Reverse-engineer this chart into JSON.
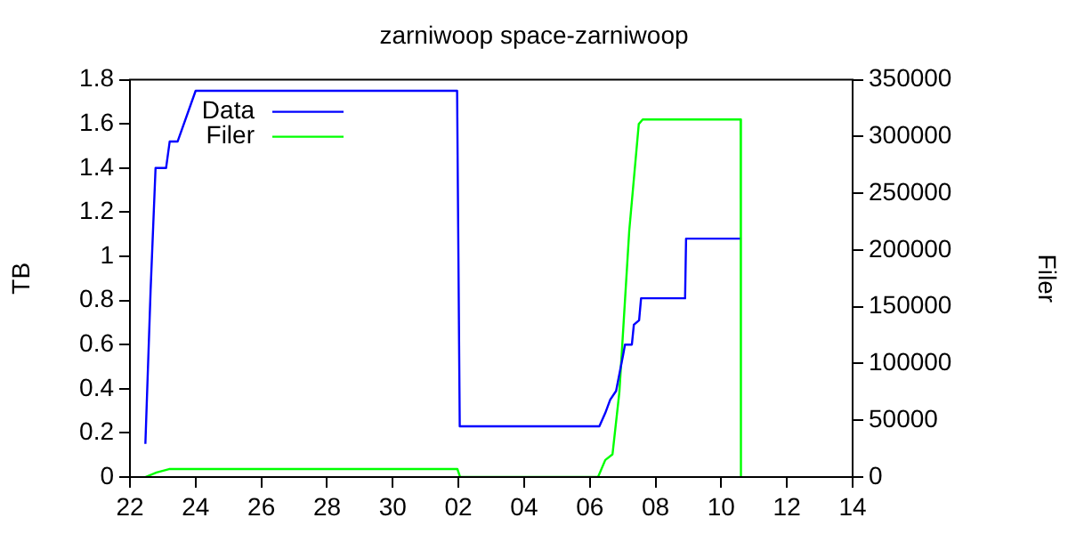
{
  "chart_data": {
    "type": "line",
    "title": "zarniwoop space-zarniwoop",
    "ylabel": "TB",
    "y2label": "Filer",
    "xlim": [
      "--06-22",
      "--07-14"
    ],
    "xticks": [
      {
        "value": "--06-22",
        "label": "22"
      },
      {
        "value": "--06-24",
        "label": "24"
      },
      {
        "value": "--06-26",
        "label": "26"
      },
      {
        "value": "--06-28",
        "label": "28"
      },
      {
        "value": "--06-30",
        "label": "30"
      },
      {
        "value": "--07-02",
        "label": "02"
      },
      {
        "value": "--07-04",
        "label": "04"
      },
      {
        "value": "--07-06",
        "label": "06"
      },
      {
        "value": "--07-08",
        "label": "08"
      },
      {
        "value": "--07-10",
        "label": "10"
      },
      {
        "value": "--07-12",
        "label": "12"
      },
      {
        "value": "--07-14",
        "label": "14"
      }
    ],
    "ylim": [
      0,
      1.8
    ],
    "yticks": [
      0,
      0.2,
      0.4,
      0.6,
      0.8,
      1,
      1.2,
      1.4,
      1.6,
      1.8
    ],
    "y2lim": [
      0,
      350000
    ],
    "y2ticks": [
      0,
      50000,
      100000,
      150000,
      200000,
      250000,
      300000,
      350000
    ],
    "grid": false,
    "legend": "top left",
    "marker": "none",
    "line_style": "solid",
    "series": [
      {
        "name": "Data",
        "color": "#0000ff",
        "x": [
          "--06-22T11:17",
          "--06-22T15:07",
          "--06-22T18:43",
          "--06-23T02:24",
          "--06-23T05:02",
          "--06-23T10:48",
          "--06-24T00:00",
          "--07-01T23:02",
          "--07-02T00:58",
          "--07-06T06:58",
          "--07-06T11:17",
          "--07-06T14:53",
          "--07-06T19:12",
          "--07-07T00:14",
          "--07-07T01:41",
          "--07-07T06:43",
          "--07-07T08:10",
          "--07-07T12:00",
          "--07-07T13:26",
          "--07-08T21:36",
          "--07-08T22:19",
          "--07-10T13:41"
        ],
        "values": [
          0.15,
          0.85,
          1.4,
          1.4,
          1.52,
          1.52,
          1.75,
          1.75,
          0.23,
          0.23,
          0.29,
          0.35,
          0.39,
          0.55,
          0.6,
          0.6,
          0.69,
          0.71,
          0.81,
          0.81,
          1.08,
          1.08
        ]
      },
      {
        "name": "Filer",
        "color": "#00ff00",
        "axis": "y2",
        "x": [
          "--06-22T11:17",
          "--06-22T19:26",
          "--06-23T04:34",
          "--07-01T23:17",
          "--07-02T01:12",
          "--07-06T06:00",
          "--07-06T11:17",
          "--07-06T16:34",
          "--07-06T21:36",
          "--07-07T04:48",
          "--07-07T11:46",
          "--07-07T14:38",
          "--07-10T14:10",
          "--07-10T14:24"
        ],
        "values": [
          0,
          4000,
          7000,
          7000,
          0,
          0,
          15000,
          20000,
          75000,
          217000,
          311000,
          315000,
          315000,
          0
        ]
      }
    ]
  }
}
